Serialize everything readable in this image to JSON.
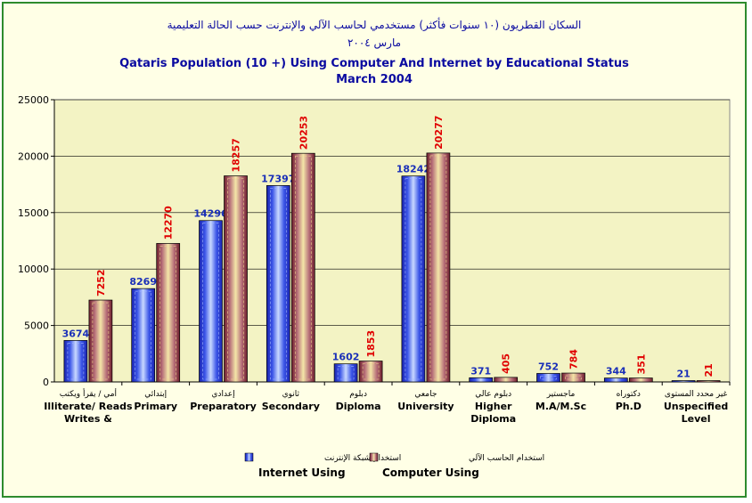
{
  "title_ar_1": "السكان القطريون (١٠ سنوات فأكثر) مستخدمي لحاسب الآلي والإنترنت حسب الحالة التعليمية",
  "title_ar_2": "مارس ٢٠٠٤",
  "title_en_1": "Qataris Population (10 +) Using Computer And Internet by Educational Status",
  "title_en_2": "March 2004",
  "colors": {
    "internet": "#2f3fd8",
    "computer": "#8a2a3a",
    "plot_bg": "#f3f3c4",
    "frame": "#2e8b2e"
  },
  "legend": {
    "internet_ar": "استخدام شبكة الإنترنت",
    "internet_en": "Internet Using",
    "computer_ar": "استخدام الحاسب الآلي",
    "computer_en": "Computer Using"
  },
  "chart_data": {
    "type": "bar",
    "categories": [
      {
        "ar": "أمي / يقرأ ويكتب",
        "en": [
          "Illiterate/ Reads",
          "Writes &"
        ]
      },
      {
        "ar": "إبتدائي",
        "en": [
          "Primary"
        ]
      },
      {
        "ar": "إعدادي",
        "en": [
          "Preparatory"
        ]
      },
      {
        "ar": "ثانوي",
        "en": [
          "Secondary"
        ]
      },
      {
        "ar": "دبلوم",
        "en": [
          "Diploma"
        ]
      },
      {
        "ar": "جامعي",
        "en": [
          "University"
        ]
      },
      {
        "ar": "دبلوم عالي",
        "en": [
          "Higher",
          "Diploma"
        ]
      },
      {
        "ar": "ماجستير",
        "en": [
          "M.A/M.Sc"
        ]
      },
      {
        "ar": "دكتوراه",
        "en": [
          "Ph.D"
        ]
      },
      {
        "ar": "غير محدد المستوى",
        "en": [
          "Unspecified",
          "Level"
        ]
      }
    ],
    "series": [
      {
        "name": "Internet Using",
        "values": [
          3674,
          8269,
          14296,
          17397,
          1602,
          18242,
          371,
          752,
          344,
          21
        ]
      },
      {
        "name": "Computer Using",
        "values": [
          7252,
          12270,
          18257,
          20253,
          1853,
          20277,
          405,
          784,
          351,
          21
        ]
      }
    ],
    "ylim": [
      0,
      25000
    ],
    "yticks": [
      0,
      5000,
      10000,
      15000,
      20000,
      25000
    ],
    "grid": true,
    "legend_position": "bottom"
  }
}
